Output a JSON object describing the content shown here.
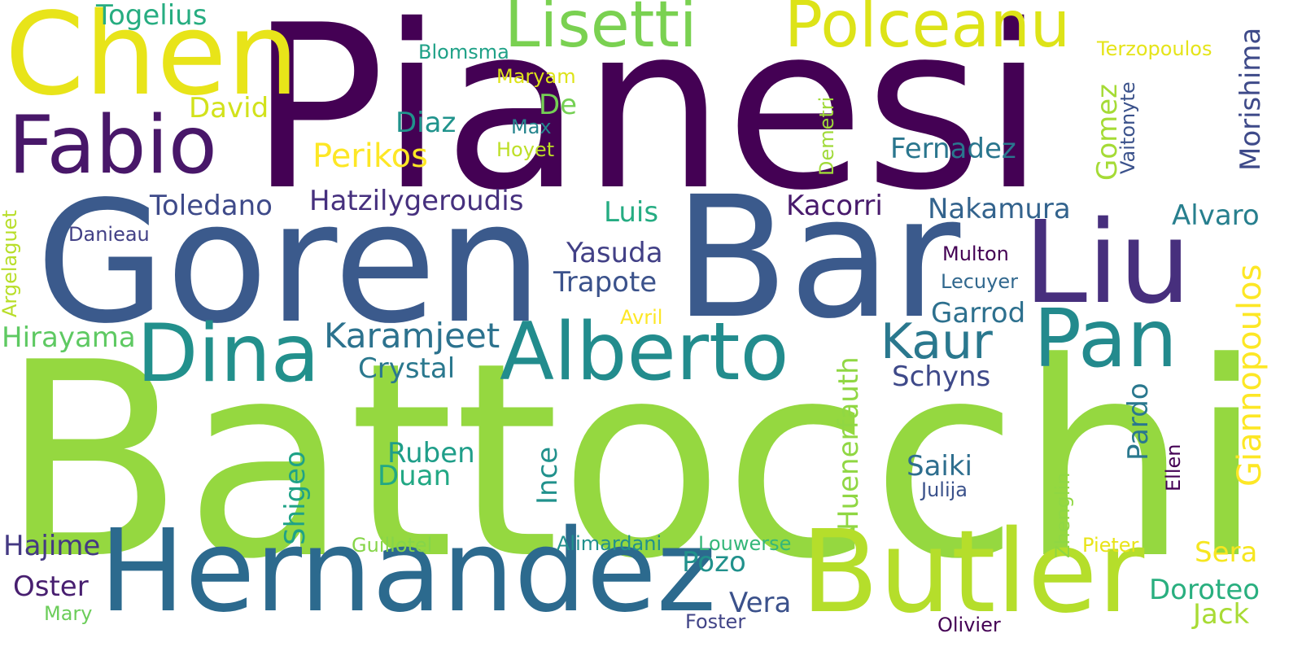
{
  "words": [
    {
      "id": "pianesi",
      "text": "Pianesi",
      "color": "#440154"
    },
    {
      "id": "battocchi",
      "text": "Battocchi",
      "color": "#95d840"
    },
    {
      "id": "goren",
      "text": "Goren",
      "color": "#3b5a8c"
    },
    {
      "id": "bar",
      "text": "Bar",
      "color": "#3b5a8c"
    },
    {
      "id": "hernandez",
      "text": "Hernandez",
      "color": "#2c6a8e"
    },
    {
      "id": "chen",
      "text": "Chen",
      "color": "#e8e419"
    },
    {
      "id": "butler",
      "text": "Butler",
      "color": "#b5de2b"
    },
    {
      "id": "liu",
      "text": "Liu",
      "color": "#472f7d"
    },
    {
      "id": "fabio",
      "text": "Fabio",
      "color": "#481769"
    },
    {
      "id": "alberto",
      "text": "Alberto",
      "color": "#228c8d"
    },
    {
      "id": "dina",
      "text": "Dina",
      "color": "#22908c"
    },
    {
      "id": "pan",
      "text": "Pan",
      "color": "#238a8d"
    },
    {
      "id": "lisetti",
      "text": "Lisetti",
      "color": "#7ad151"
    },
    {
      "id": "polceanu",
      "text": "Polceanu",
      "color": "#dde318"
    },
    {
      "id": "kaur",
      "text": "Kaur",
      "color": "#2a788e"
    },
    {
      "id": "karamjeet",
      "text": "Karamjeet",
      "color": "#2c728e"
    },
    {
      "id": "togelius",
      "text": "Togelius",
      "color": "#27ad81"
    },
    {
      "id": "david",
      "text": "David",
      "color": "#d2e21b"
    },
    {
      "id": "diaz",
      "text": "Diaz",
      "color": "#20938c"
    },
    {
      "id": "de",
      "text": "De",
      "color": "#75d054"
    },
    {
      "id": "perikos",
      "text": "Perikos",
      "color": "#fde725"
    },
    {
      "id": "toledano",
      "text": "Toledano",
      "color": "#3e4a89"
    },
    {
      "id": "hatzilygeroudis",
      "text": "Hatzilygeroudis",
      "color": "#46307e"
    },
    {
      "id": "luis",
      "text": "Luis",
      "color": "#25ac82"
    },
    {
      "id": "kacorri",
      "text": "Kacorri",
      "color": "#481a6c"
    },
    {
      "id": "nakamura",
      "text": "Nakamura",
      "color": "#33638d"
    },
    {
      "id": "alvaro",
      "text": "Alvaro",
      "color": "#277f8e"
    },
    {
      "id": "fernadez",
      "text": "Fernadez",
      "color": "#2a768e"
    },
    {
      "id": "yasuda",
      "text": "Yasuda",
      "color": "#424086"
    },
    {
      "id": "trapote",
      "text": "Trapote",
      "color": "#3b528b"
    },
    {
      "id": "crystal",
      "text": "Crystal",
      "color": "#2a788e"
    },
    {
      "id": "schyns",
      "text": "Schyns",
      "color": "#3e4989"
    },
    {
      "id": "garrod",
      "text": "Garrod",
      "color": "#2d708e"
    },
    {
      "id": "hirayama",
      "text": "Hirayama",
      "color": "#5ec962"
    },
    {
      "id": "ruben",
      "text": "Ruben",
      "color": "#1f9e89"
    },
    {
      "id": "duan",
      "text": "Duan",
      "color": "#22a884"
    },
    {
      "id": "saiki",
      "text": "Saiki",
      "color": "#2e6e8e"
    },
    {
      "id": "julija",
      "text": "Julija",
      "color": "#3b528b"
    },
    {
      "id": "hajime",
      "text": "Hajime",
      "color": "#443983"
    },
    {
      "id": "oster",
      "text": "Oster",
      "color": "#481f70"
    },
    {
      "id": "mary",
      "text": "Mary",
      "color": "#6ccd5a"
    },
    {
      "id": "pozo",
      "text": "Pozo",
      "color": "#21918c"
    },
    {
      "id": "vera",
      "text": "Vera",
      "color": "#3b518b"
    },
    {
      "id": "sera",
      "text": "Sera",
      "color": "#f6e620"
    },
    {
      "id": "doroteo",
      "text": "Doroteo",
      "color": "#29af7f"
    },
    {
      "id": "jack",
      "text": "Jack",
      "color": "#a8db34"
    },
    {
      "id": "blomsma",
      "text": "Blomsma",
      "color": "#1fa187"
    },
    {
      "id": "maryam",
      "text": "Maryam",
      "color": "#dde318"
    },
    {
      "id": "max",
      "text": "Max",
      "color": "#25858e"
    },
    {
      "id": "hoyet",
      "text": "Hoyet",
      "color": "#bddf26"
    },
    {
      "id": "terzopoulos",
      "text": "Terzopoulos",
      "color": "#e5e419"
    },
    {
      "id": "danieau",
      "text": "Danieau",
      "color": "#424086"
    },
    {
      "id": "multon",
      "text": "Multon",
      "color": "#440154"
    },
    {
      "id": "lecuyer",
      "text": "Lecuyer",
      "color": "#31688e"
    },
    {
      "id": "avril",
      "text": "Avril",
      "color": "#fde725"
    },
    {
      "id": "guillotel",
      "text": "Guillotel",
      "color": "#86d549"
    },
    {
      "id": "alimardani",
      "text": "Alimardani",
      "color": "#21908d"
    },
    {
      "id": "louwerse",
      "text": "Louwerse",
      "color": "#35b779"
    },
    {
      "id": "pieter",
      "text": "Pieter",
      "color": "#e8e419"
    },
    {
      "id": "foster",
      "text": "Foster",
      "color": "#414487"
    },
    {
      "id": "olivier",
      "text": "Olivier",
      "color": "#440154"
    },
    {
      "id": "morishima",
      "text": "Morishima",
      "color": "#3e4a89"
    },
    {
      "id": "vaitonyte",
      "text": "Vaitonyte",
      "color": "#3b528b"
    },
    {
      "id": "gomez",
      "text": "Gomez",
      "color": "#a5db36"
    },
    {
      "id": "demetri",
      "text": "Demetri",
      "color": "#a0da39"
    },
    {
      "id": "argelaguet",
      "text": "Argelaguet",
      "color": "#b8de29"
    },
    {
      "id": "giannopoulos",
      "text": "Giannopoulos",
      "color": "#fde725"
    },
    {
      "id": "huenerfauth",
      "text": "Huenerfauth",
      "color": "#90d743"
    },
    {
      "id": "pardo",
      "text": "Pardo",
      "color": "#2a788e"
    },
    {
      "id": "ince",
      "text": "Ince",
      "color": "#21918c"
    },
    {
      "id": "shigeo",
      "text": "Shigeo",
      "color": "#1fa287"
    },
    {
      "id": "zhenglin",
      "text": "Zhenglin",
      "color": "#90d743"
    },
    {
      "id": "ellen",
      "text": "Ellen",
      "color": "#440154"
    }
  ]
}
